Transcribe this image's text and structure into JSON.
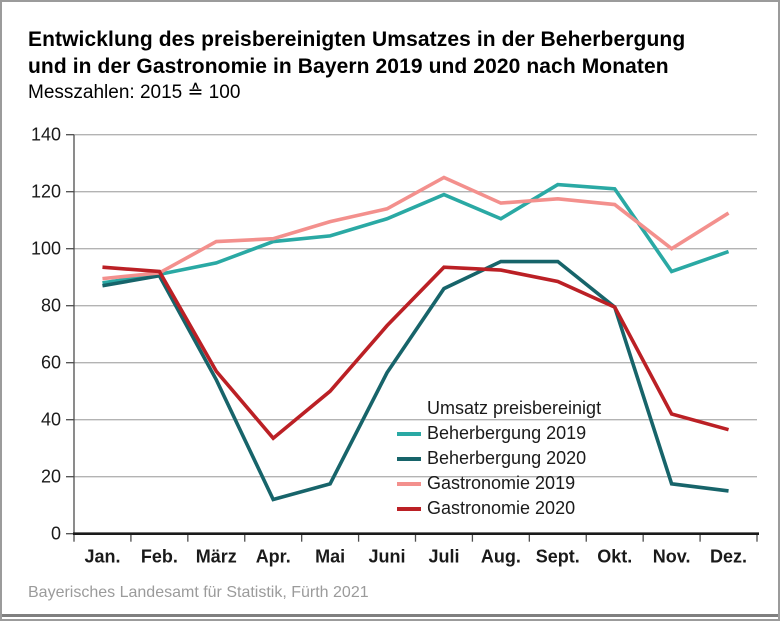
{
  "header": {
    "title_line1": "Entwicklung des preisbereinigten Umsatzes in der Beherbergung",
    "title_line2": "und in der Gastronomie in Bayern 2019 und 2020 nach Monaten",
    "subtitle": "Messzahlen: 2015 ≙ 100"
  },
  "legend": {
    "title": "Umsatz preisbereinigt"
  },
  "footer": {
    "source": "Bayerisches Landesamt für Statistik, Fürth 2021"
  },
  "colors": {
    "beherbergung_2019": "#2AA9A4",
    "beherbergung_2020": "#17646A",
    "gastronomie_2019": "#F3908D",
    "gastronomie_2020": "#BB2025",
    "gridline": "#b3b3b3",
    "axis": "#4d4d4d",
    "baseline": "#1a1a1a"
  },
  "chart_data": {
    "type": "line",
    "title": "Entwicklung des preisbereinigten Umsatzes in der Beherbergung und in der Gastronomie in Bayern 2019 und 2020 nach Monaten",
    "subtitle": "Messzahlen: 2015 ≙ 100",
    "categories": [
      "Jan.",
      "Feb.",
      "März",
      "Apr.",
      "Mai",
      "Juni",
      "Juli",
      "Aug.",
      "Sept.",
      "Okt.",
      "Nov.",
      "Dez."
    ],
    "series": [
      {
        "name": "Beherbergung 2019",
        "color": "#2AA9A4",
        "values": [
          88,
          91,
          95,
          102.5,
          104.5,
          110.5,
          119,
          110.5,
          122.5,
          121,
          92,
          99
        ]
      },
      {
        "name": "Beherbergung 2020",
        "color": "#17646A",
        "values": [
          87,
          90.5,
          54,
          12,
          17.5,
          56.5,
          86,
          95.5,
          95.5,
          79.5,
          17.5,
          15
        ]
      },
      {
        "name": "Gastronomie 2019",
        "color": "#F3908D",
        "values": [
          89.5,
          91.5,
          102.5,
          103.5,
          109.5,
          114,
          125,
          116,
          117.5,
          115.5,
          100,
          112.5
        ]
      },
      {
        "name": "Gastronomie 2020",
        "color": "#BB2025",
        "values": [
          93.5,
          92,
          57,
          33.5,
          50,
          73,
          93.5,
          92.5,
          88.5,
          79.5,
          42,
          36.5
        ]
      }
    ],
    "xlabel": "",
    "ylabel": "",
    "ylim": [
      0,
      140
    ],
    "ytick_step": 20,
    "grid": true,
    "legend_position": "inside-right-bottom"
  }
}
